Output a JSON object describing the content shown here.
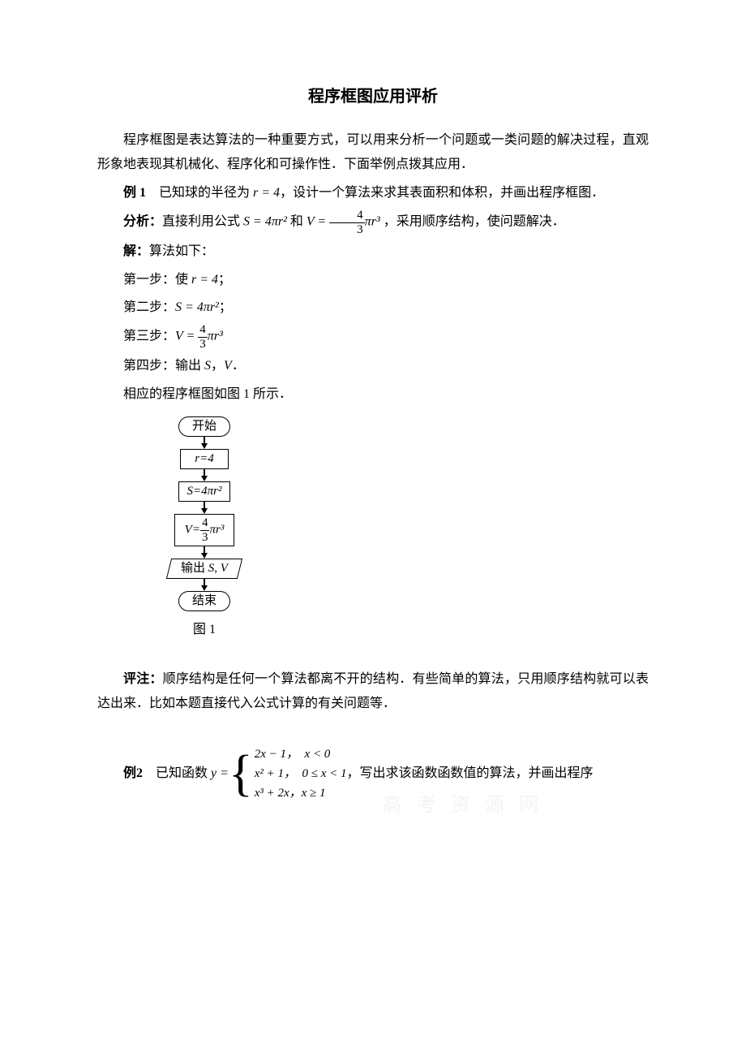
{
  "title": "程序框图应用评析",
  "intro": "程序框图是表达算法的一种重要方式，可以用来分析一个问题或一类问题的解决过程，直观形象地表现其机械化、程序化和可操作性．下面举例点拨其应用．",
  "example1": {
    "label": "例 1",
    "text_before_r": "　已知球的半径为",
    "r_eq": "r = 4",
    "text_after_r": "，设计一个算法来求其表面积和体积，并画出程序框图．",
    "analysis_label": "分析：",
    "analysis_before_S": "直接利用公式",
    "S_formula": "S = 4πr²",
    "analysis_and": " 和 ",
    "V_eq_sign": "V = ",
    "V_frac_num": "4",
    "V_frac_den": "3",
    "V_tail": "πr³",
    "analysis_after": " ，采用顺序结构，使问题解决．",
    "solve_label": "解：",
    "solve_text": "算法如下：",
    "step1_prefix": "第一步：使 ",
    "step1_math": "r = 4",
    "step1_suffix": "；",
    "step2_prefix": "第二步：",
    "step2_math": "S = 4πr²",
    "step2_suffix": "；",
    "step3_prefix": "第三步：",
    "step3_V": "V = ",
    "step3_num": "4",
    "step3_den": "3",
    "step3_tail": "πr³",
    "step4_prefix": "第四步：输出 ",
    "step4_S": "S",
    "step4_comma": "，",
    "step4_V": "V",
    "step4_suffix": "．",
    "flow_intro": "相应的程序框图如图 1 所示．"
  },
  "flowchart": {
    "start": "开始",
    "n1": "r=4",
    "n2": "S=4πr²",
    "n3_V": "V=",
    "n3_num": "4",
    "n3_den": "3",
    "n3_tail": "πr³",
    "out_prefix": "输出 ",
    "out_S": "S",
    "out_comma": ", ",
    "out_V": "V",
    "end": "结束",
    "caption": "图 1",
    "colors": {
      "line": "#000000",
      "bg": "#ffffff"
    }
  },
  "comment": {
    "label": "评注：",
    "text": "顺序结构是任何一个算法都离不开的结构．有些简单的算法，只用顺序结构就可以表达出来．比如本题直接代入公式计算的有关问题等．"
  },
  "example2": {
    "label": "例2",
    "prefix": "　已知函数 ",
    "y_eq": "y = ",
    "case1": "2x − 1，　x < 0",
    "case2": "x² + 1，　0 ≤ x < 1",
    "case3": "x³ + 2x，x ≥ 1",
    "suffix": "，写出求该函数函数值的算法，并画出程序"
  },
  "watermark": "高 考 资 源 网"
}
